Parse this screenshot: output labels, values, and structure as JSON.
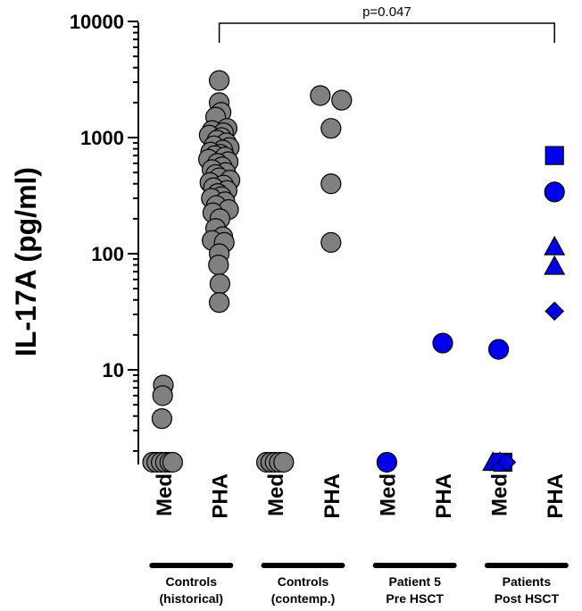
{
  "chart_data": {
    "type": "scatter",
    "ylabel": "IL-17A (pg/ml)",
    "yscale": "log",
    "ylim": [
      1.5,
      10000
    ],
    "yticks": [
      {
        "value": 10,
        "label": "10"
      },
      {
        "value": 100,
        "label": "100"
      },
      {
        "value": 1000,
        "label": "1000"
      },
      {
        "value": 10000,
        "label": "10000"
      }
    ],
    "categories": [
      "Med",
      "PHA",
      "Med",
      "PHA",
      "Med",
      "PHA",
      "Med",
      "PHA"
    ],
    "groups": [
      {
        "line1": "Controls",
        "line2": "(historical)",
        "categories": [
          0,
          1
        ]
      },
      {
        "line1": "Controls",
        "line2": "(contemp.)",
        "categories": [
          2,
          3
        ]
      },
      {
        "line1": "Patient 5",
        "line2": "Pre HSCT",
        "categories": [
          4,
          5
        ]
      },
      {
        "line1": "Patients",
        "line2": "Post HSCT",
        "categories": [
          6,
          7
        ]
      }
    ],
    "significance": {
      "from": 1,
      "to": 7,
      "label": "p=0.047"
    },
    "colors": {
      "controls": "#808080",
      "patients": "#0000ee",
      "outline": "#000000"
    },
    "series": [
      {
        "color": "#808080",
        "marker": "circle",
        "points": [
          {
            "cat": 0,
            "jitter": -0.3,
            "y": 1.6
          },
          {
            "cat": 0,
            "jitter": -0.18,
            "y": 1.6
          },
          {
            "cat": 0,
            "jitter": -0.06,
            "y": 1.6
          },
          {
            "cat": 0,
            "jitter": 0.06,
            "y": 1.6
          },
          {
            "cat": 0,
            "jitter": 0.18,
            "y": 1.6
          },
          {
            "cat": 0,
            "jitter": 0.26,
            "y": 1.6
          },
          {
            "cat": 0,
            "jitter": 0.0,
            "y": 7.4
          },
          {
            "cat": 0,
            "jitter": -0.02,
            "y": 6.0
          },
          {
            "cat": 0,
            "jitter": -0.04,
            "y": 3.8
          },
          {
            "cat": 1,
            "jitter": 0.0,
            "y": 3100
          },
          {
            "cat": 1,
            "jitter": 0.0,
            "y": 2000
          },
          {
            "cat": 1,
            "jitter": 0.05,
            "y": 1650
          },
          {
            "cat": 1,
            "jitter": -0.1,
            "y": 1500
          },
          {
            "cat": 1,
            "jitter": 0.22,
            "y": 1200
          },
          {
            "cat": 1,
            "jitter": -0.2,
            "y": 1150
          },
          {
            "cat": 1,
            "jitter": 0.12,
            "y": 1100
          },
          {
            "cat": 1,
            "jitter": -0.28,
            "y": 1050
          },
          {
            "cat": 1,
            "jitter": 0.06,
            "y": 1000
          },
          {
            "cat": 1,
            "jitter": -0.06,
            "y": 950
          },
          {
            "cat": 1,
            "jitter": 0.2,
            "y": 900
          },
          {
            "cat": 1,
            "jitter": -0.15,
            "y": 850
          },
          {
            "cat": 1,
            "jitter": 0.28,
            "y": 820
          },
          {
            "cat": 1,
            "jitter": 0.1,
            "y": 780
          },
          {
            "cat": 1,
            "jitter": -0.24,
            "y": 750
          },
          {
            "cat": 1,
            "jitter": 0.02,
            "y": 720
          },
          {
            "cat": 1,
            "jitter": -0.12,
            "y": 700
          },
          {
            "cat": 1,
            "jitter": 0.16,
            "y": 680
          },
          {
            "cat": 1,
            "jitter": -0.3,
            "y": 650
          },
          {
            "cat": 1,
            "jitter": 0.25,
            "y": 620
          },
          {
            "cat": 1,
            "jitter": -0.05,
            "y": 600
          },
          {
            "cat": 1,
            "jitter": 0.08,
            "y": 560
          },
          {
            "cat": 1,
            "jitter": -0.2,
            "y": 530
          },
          {
            "cat": 1,
            "jitter": 0.18,
            "y": 500
          },
          {
            "cat": 1,
            "jitter": -0.1,
            "y": 480
          },
          {
            "cat": 1,
            "jitter": 0.0,
            "y": 450
          },
          {
            "cat": 1,
            "jitter": 0.3,
            "y": 430
          },
          {
            "cat": 1,
            "jitter": -0.26,
            "y": 410
          },
          {
            "cat": 1,
            "jitter": 0.12,
            "y": 390
          },
          {
            "cat": 1,
            "jitter": -0.16,
            "y": 370
          },
          {
            "cat": 1,
            "jitter": 0.22,
            "y": 350
          },
          {
            "cat": 1,
            "jitter": -0.04,
            "y": 330
          },
          {
            "cat": 1,
            "jitter": 0.06,
            "y": 310
          },
          {
            "cat": 1,
            "jitter": -0.22,
            "y": 300
          },
          {
            "cat": 1,
            "jitter": 0.16,
            "y": 280
          },
          {
            "cat": 1,
            "jitter": -0.08,
            "y": 260
          },
          {
            "cat": 1,
            "jitter": 0.26,
            "y": 240
          },
          {
            "cat": 1,
            "jitter": -0.18,
            "y": 225
          },
          {
            "cat": 1,
            "jitter": 0.02,
            "y": 200
          },
          {
            "cat": 1,
            "jitter": -0.1,
            "y": 165
          },
          {
            "cat": 1,
            "jitter": 0.1,
            "y": 140
          },
          {
            "cat": 1,
            "jitter": -0.2,
            "y": 130
          },
          {
            "cat": 1,
            "jitter": 0.14,
            "y": 125
          },
          {
            "cat": 1,
            "jitter": 0.0,
            "y": 100
          },
          {
            "cat": 1,
            "jitter": -0.02,
            "y": 80
          },
          {
            "cat": 1,
            "jitter": 0.02,
            "y": 55
          },
          {
            "cat": 1,
            "jitter": 0.0,
            "y": 38
          },
          {
            "cat": 2,
            "jitter": -0.24,
            "y": 1.6
          },
          {
            "cat": 2,
            "jitter": -0.12,
            "y": 1.6
          },
          {
            "cat": 2,
            "jitter": 0.0,
            "y": 1.6
          },
          {
            "cat": 2,
            "jitter": 0.12,
            "y": 1.6
          },
          {
            "cat": 2,
            "jitter": 0.24,
            "y": 1.6
          },
          {
            "cat": 3,
            "jitter": -0.3,
            "y": 2300
          },
          {
            "cat": 3,
            "jitter": 0.3,
            "y": 2100
          },
          {
            "cat": 3,
            "jitter": 0.0,
            "y": 1200
          },
          {
            "cat": 3,
            "jitter": 0.0,
            "y": 400
          },
          {
            "cat": 3,
            "jitter": 0.0,
            "y": 125
          }
        ]
      },
      {
        "color": "#0000ee",
        "points": [
          {
            "cat": 4,
            "jitter": 0.0,
            "y": 1.6,
            "marker": "circle"
          },
          {
            "cat": 5,
            "jitter": 0.0,
            "y": 17,
            "marker": "circle"
          },
          {
            "cat": 6,
            "jitter": 0.0,
            "y": 15,
            "marker": "circle"
          },
          {
            "cat": 6,
            "jitter": -0.16,
            "y": 1.6,
            "marker": "triangle"
          },
          {
            "cat": 6,
            "jitter": 0.04,
            "y": 1.6,
            "marker": "triangle"
          },
          {
            "cat": 6,
            "jitter": 0.12,
            "y": 1.6,
            "marker": "square"
          },
          {
            "cat": 6,
            "jitter": 0.22,
            "y": 1.6,
            "marker": "diamond"
          },
          {
            "cat": 7,
            "jitter": 0.0,
            "y": 700,
            "marker": "square"
          },
          {
            "cat": 7,
            "jitter": 0.0,
            "y": 340,
            "marker": "circle"
          },
          {
            "cat": 7,
            "jitter": 0.0,
            "y": 115,
            "marker": "triangle"
          },
          {
            "cat": 7,
            "jitter": 0.0,
            "y": 78,
            "marker": "triangle"
          },
          {
            "cat": 7,
            "jitter": 0.0,
            "y": 32,
            "marker": "diamond"
          }
        ]
      }
    ]
  }
}
